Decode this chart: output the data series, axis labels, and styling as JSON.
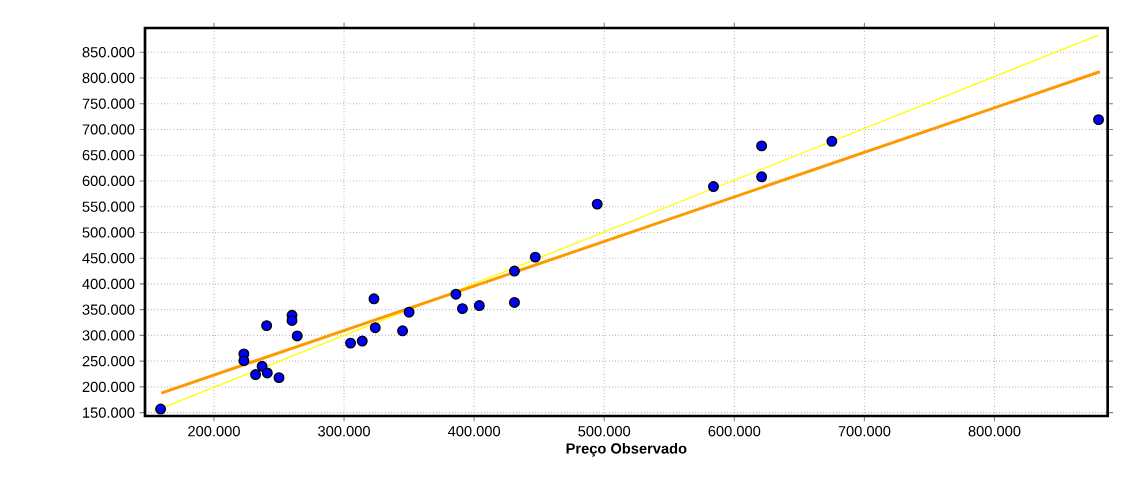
{
  "chart_data": {
    "type": "scatter",
    "xlabel": "Preço Observado",
    "xlim": [
      147000,
      887000
    ],
    "ylim": [
      143500,
      897000
    ],
    "xticks": [
      {
        "value": 200000,
        "label": "200.000"
      },
      {
        "value": 300000,
        "label": "300.000"
      },
      {
        "value": 400000,
        "label": "400.000"
      },
      {
        "value": 500000,
        "label": "500.000"
      },
      {
        "value": 600000,
        "label": "600.000"
      },
      {
        "value": 700000,
        "label": "700.000"
      },
      {
        "value": 800000,
        "label": "800.000"
      }
    ],
    "yticks": [
      {
        "value": 150000,
        "label": "150.000"
      },
      {
        "value": 200000,
        "label": "200.000"
      },
      {
        "value": 250000,
        "label": "250.000"
      },
      {
        "value": 300000,
        "label": "300.000"
      },
      {
        "value": 350000,
        "label": "350.000"
      },
      {
        "value": 400000,
        "label": "400.000"
      },
      {
        "value": 450000,
        "label": "450.000"
      },
      {
        "value": 500000,
        "label": "500.000"
      },
      {
        "value": 550000,
        "label": "550.000"
      },
      {
        "value": 600000,
        "label": "600.000"
      },
      {
        "value": 650000,
        "label": "650.000"
      },
      {
        "value": 700000,
        "label": "700.000"
      },
      {
        "value": 750000,
        "label": "750.000"
      },
      {
        "value": 800000,
        "label": "800.000"
      },
      {
        "value": 850000,
        "label": "850.000"
      }
    ],
    "grid": true,
    "series": [
      {
        "type": "line",
        "color": "#ffff00",
        "marker": "none",
        "x": [
          154000,
          880000
        ],
        "values": [
          153000,
          883000
        ]
      },
      {
        "type": "line",
        "color": "#ff9900",
        "marker": "none",
        "x": [
          159500,
          881000
        ],
        "values": [
          188000,
          812000
        ]
      },
      {
        "color": "#0000ff",
        "marker": "circle",
        "x": [
          159000,
          223000,
          223000,
          240500,
          237000,
          232000,
          241000,
          250000,
          260000,
          260000,
          264000,
          305000,
          314000,
          323000,
          324000,
          345000,
          350000,
          386000,
          391000,
          404000,
          431000,
          431000,
          447000,
          494600,
          584000,
          621000,
          621000,
          675000,
          880000
        ],
        "values": [
          157000,
          264000,
          251000,
          319000,
          240000,
          224000,
          227000,
          218000,
          339000,
          329000,
          299000,
          285000,
          289000,
          371000,
          315000,
          309000,
          345000,
          380000,
          352000,
          358000,
          425000,
          364000,
          452000,
          555000,
          589000,
          608000,
          668000,
          677000,
          719000
        ]
      }
    ]
  }
}
